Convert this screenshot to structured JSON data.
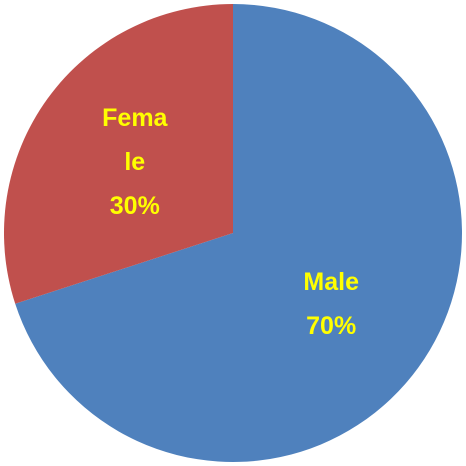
{
  "chart_data": {
    "type": "pie",
    "categories": [
      "Male",
      "Female"
    ],
    "values": [
      70,
      30
    ],
    "value_labels": [
      "70%",
      "30%"
    ],
    "colors": [
      "#4f81bd",
      "#c0504d"
    ]
  }
}
